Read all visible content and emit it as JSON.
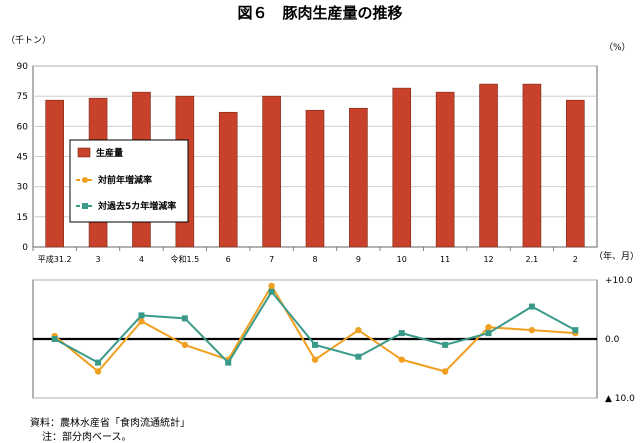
{
  "title": "図６　豚肉生産量の推移",
  "units": {
    "left": "（千トン）",
    "right": "（%）",
    "x": "（年、月）"
  },
  "footnotes": [
    "資料：農林水産省「食肉流通統計」",
    "注：部分肉ベース。"
  ],
  "colors": {
    "bar": "#c8412a",
    "yoy": "#f0a020",
    "fiveyear": "#3a9a8a",
    "grid": "#c8c8c8"
  },
  "chart_data": {
    "type": "bar+line",
    "categories": [
      "平成31.2",
      "3",
      "4",
      "令和1.5",
      "6",
      "7",
      "8",
      "9",
      "10",
      "11",
      "12",
      "2.1",
      "2"
    ],
    "bar_series": {
      "name": "生産量",
      "values": [
        73,
        74,
        77,
        75,
        67,
        75,
        68,
        69,
        79,
        77,
        81,
        81,
        73
      ],
      "ylim": [
        0,
        90
      ],
      "yticks": [
        0,
        15,
        30,
        45,
        60,
        75,
        90
      ]
    },
    "line_series": [
      {
        "name": "対前年増減率",
        "values": [
          0.5,
          -5.5,
          3.0,
          -1.0,
          -3.5,
          9.0,
          -3.5,
          1.5,
          -3.5,
          -5.5,
          2.0,
          1.5,
          1.0
        ]
      },
      {
        "name": "対過去5カ年増減率",
        "values": [
          0.0,
          -4.0,
          4.0,
          3.5,
          -4.0,
          8.0,
          -1.0,
          -3.0,
          1.0,
          -1.0,
          1.0,
          5.5,
          1.5
        ]
      }
    ],
    "line_ylim": [
      -10,
      10
    ],
    "line_ticks": [
      "+10.0",
      "0.0",
      "▲ 10.0"
    ],
    "legend_placement": "left-center"
  }
}
